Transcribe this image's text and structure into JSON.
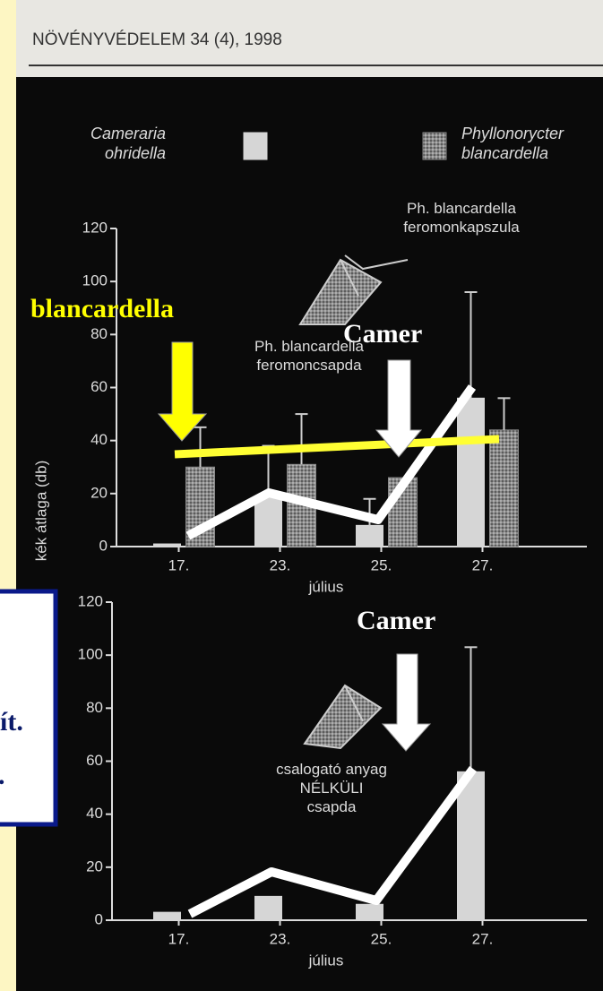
{
  "header": "NÖVÉNYVÉDELEM 34 (4), 1998",
  "chart_data": [
    {
      "type": "bar",
      "ylabel": "kék átlaga (db)",
      "xlabel": "július",
      "categories": [
        "17.",
        "23.",
        "25.",
        "27."
      ],
      "series": [
        {
          "name": "Cameraria ohridella",
          "color": "#d6d6d6",
          "values": [
            1,
            19,
            8,
            56
          ],
          "errors": [
            null,
            19,
            10,
            40
          ]
        },
        {
          "name": "Phyllonorycter blancardella",
          "color": "#8a8a8a",
          "values": [
            30,
            31,
            26,
            44
          ],
          "errors": [
            15,
            19,
            null,
            12
          ]
        }
      ],
      "ylim": [
        0,
        120
      ],
      "yticks": [
        0,
        20,
        40,
        60,
        80,
        100,
        120
      ],
      "legend": "top",
      "annotations": [
        [
          "Ph. blancardella",
          "feromonkapszula"
        ],
        [
          "Ph. blancardella",
          "feromoncsapda"
        ]
      ]
    },
    {
      "type": "bar",
      "xlabel": "július",
      "categories": [
        "17.",
        "23.",
        "25.",
        "27."
      ],
      "series": [
        {
          "name": "Cameraria ohridella",
          "color": "#d6d6d6",
          "values": [
            3,
            9,
            6,
            56
          ],
          "errors": [
            null,
            null,
            null,
            47
          ]
        }
      ],
      "ylim": [
        0,
        120
      ],
      "yticks": [
        0,
        20,
        40,
        60,
        80,
        100,
        120
      ],
      "annotations": [
        [
          "csalogató anyag",
          "NÉLKÜLI",
          "csapda"
        ]
      ]
    }
  ],
  "overlay": {
    "labels": [
      "blancardella",
      "Camer",
      "Camer",
      "ít.",
      "."
    ]
  }
}
